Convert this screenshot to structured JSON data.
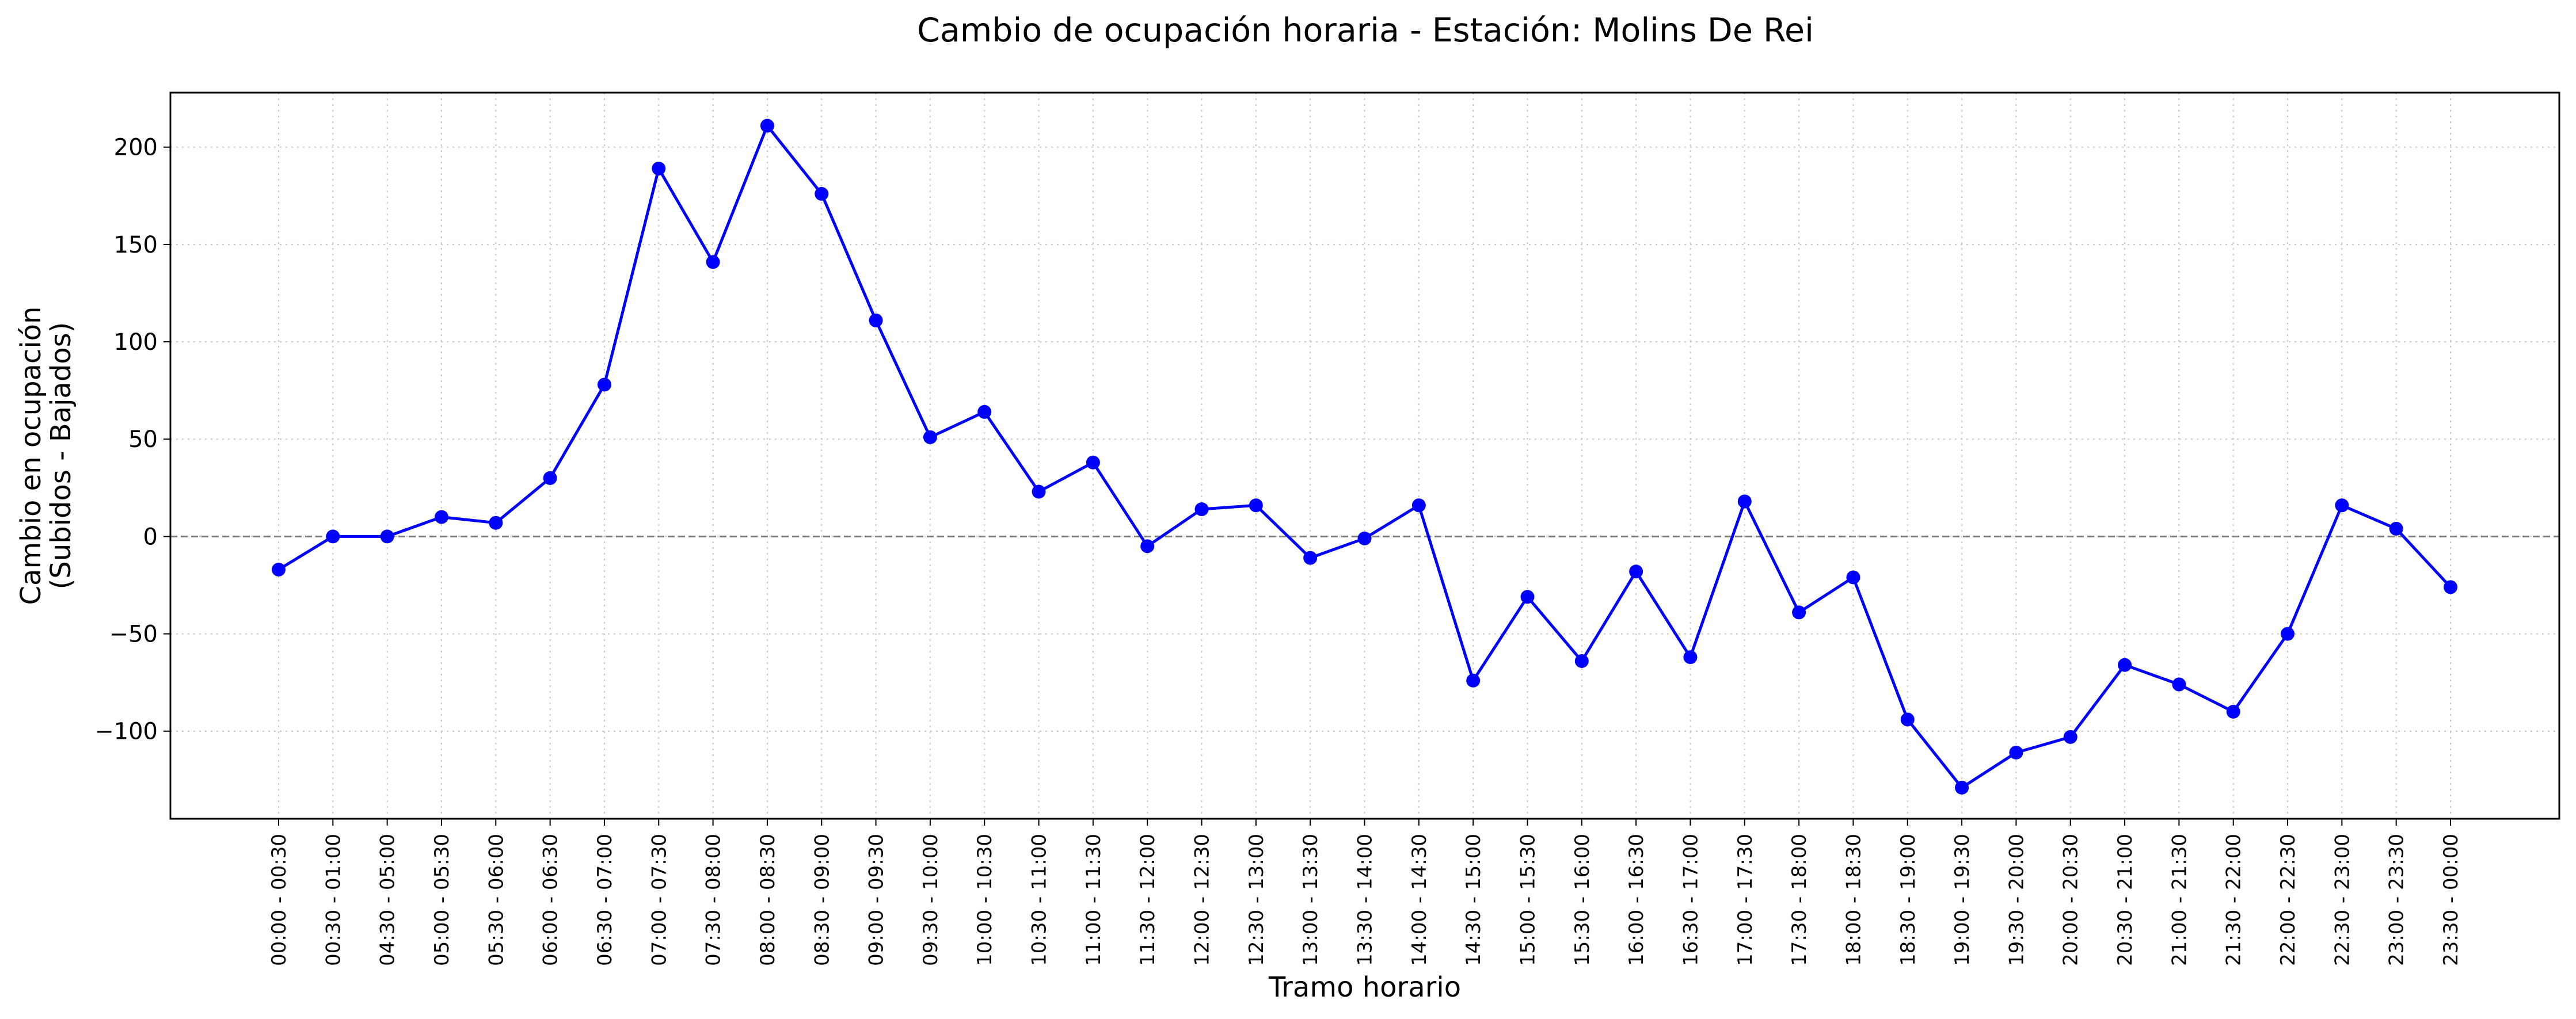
{
  "chart_data": {
    "type": "line",
    "title": "Cambio de ocupación horaria - Estación: Molins De Rei",
    "xlabel": "Tramo horario",
    "ylabel_lines": [
      "Cambio en ocupación",
      "(Subidos - Bajados)"
    ],
    "ylim": [
      -145,
      228
    ],
    "yticks": [
      -100,
      -50,
      0,
      50,
      100,
      150,
      200
    ],
    "grid": true,
    "reference_line": 0,
    "color": "#0000ff",
    "categories": [
      "00:00 - 00:30",
      "00:30 - 01:00",
      "04:30 - 05:00",
      "05:00 - 05:30",
      "05:30 - 06:00",
      "06:00 - 06:30",
      "06:30 - 07:00",
      "07:00 - 07:30",
      "07:30 - 08:00",
      "08:00 - 08:30",
      "08:30 - 09:00",
      "09:00 - 09:30",
      "09:30 - 10:00",
      "10:00 - 10:30",
      "10:30 - 11:00",
      "11:00 - 11:30",
      "11:30 - 12:00",
      "12:00 - 12:30",
      "12:30 - 13:00",
      "13:00 - 13:30",
      "13:30 - 14:00",
      "14:00 - 14:30",
      "14:30 - 15:00",
      "15:00 - 15:30",
      "15:30 - 16:00",
      "16:00 - 16:30",
      "16:30 - 17:00",
      "17:00 - 17:30",
      "17:30 - 18:00",
      "18:00 - 18:30",
      "18:30 - 19:00",
      "19:00 - 19:30",
      "19:30 - 20:00",
      "20:00 - 20:30",
      "20:30 - 21:00",
      "21:00 - 21:30",
      "21:30 - 22:00",
      "22:00 - 22:30",
      "22:30 - 23:00",
      "23:00 - 23:30",
      "23:30 - 00:00"
    ],
    "values": [
      -17,
      0,
      0,
      10,
      7,
      30,
      78,
      189,
      141,
      211,
      176,
      111,
      51,
      64,
      23,
      38,
      -5,
      14,
      16,
      -11,
      -1,
      16,
      -74,
      -31,
      -64,
      -18,
      -62,
      18,
      -39,
      -21,
      -94,
      -129,
      -111,
      -103,
      -66,
      -76,
      -90,
      -50,
      16,
      4,
      -26
    ]
  }
}
